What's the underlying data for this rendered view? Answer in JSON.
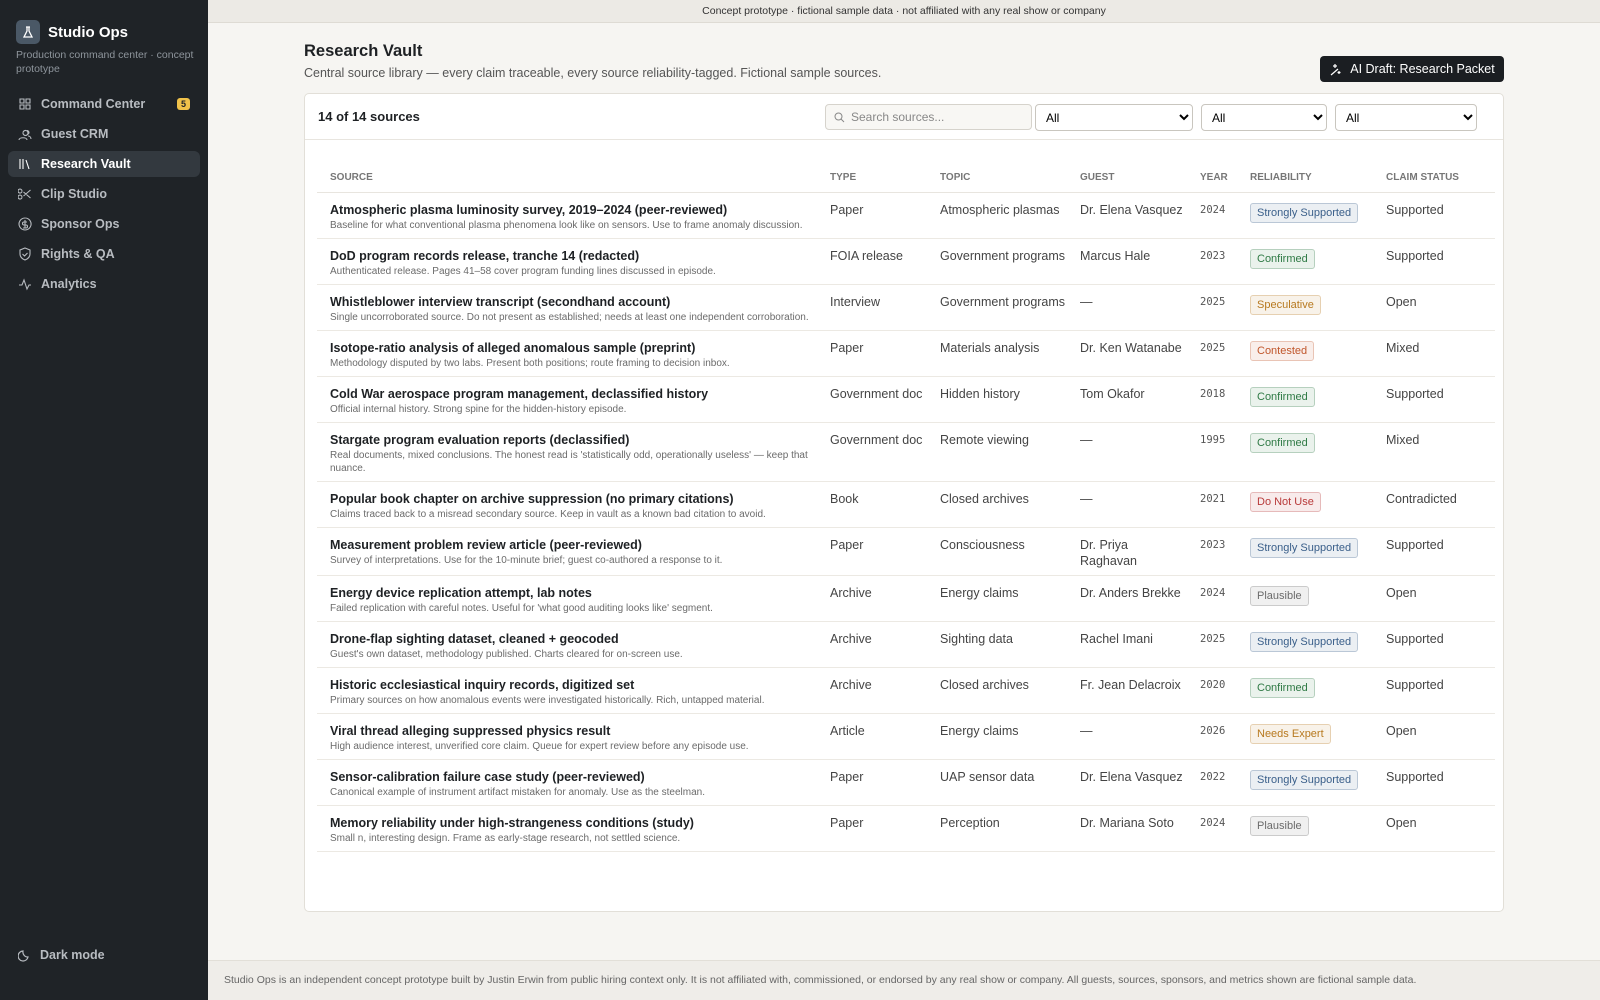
{
  "banner": "Concept prototype · fictional sample data · not affiliated with any real show or company",
  "sidebar": {
    "brand": "Studio Ops",
    "tagline": "Production command center · concept prototype",
    "nav": [
      {
        "label": "Command Center",
        "badge": 5
      },
      {
        "label": "Guest CRM"
      },
      {
        "label": "Research Vault",
        "active": true
      },
      {
        "label": "Clip Studio"
      },
      {
        "label": "Sponsor Ops"
      },
      {
        "label": "Rights & QA"
      },
      {
        "label": "Analytics"
      }
    ],
    "dark_mode": "Dark mode"
  },
  "header": {
    "title": "Research Vault",
    "subtitle": "Central source library — every claim traceable, every source reliability-tagged. Fictional sample sources.",
    "action": "AI Draft: Research Packet"
  },
  "toolbar": {
    "count": "14 of 14 sources",
    "search_placeholder": "Search sources...",
    "filters": [
      "All",
      "All",
      "All"
    ]
  },
  "table": {
    "columns": [
      "SOURCE",
      "TYPE",
      "TOPIC",
      "GUEST",
      "YEAR",
      "RELIABILITY",
      "CLAIM STATUS"
    ],
    "rows": [
      {
        "title": "Atmospheric plasma luminosity survey, 2019–2024 (peer-reviewed)",
        "note": "Baseline for what conventional plasma phenomena look like on sensors. Use to frame anomaly discussion.",
        "type": "Paper",
        "topic": "Atmospheric plasmas",
        "guest": "Dr. Elena Vasquez",
        "year": 2024,
        "reliability": "Strongly Supported",
        "color": "#3a5f8a",
        "status": "Supported"
      },
      {
        "title": "DoD program records release, tranche 14 (redacted)",
        "note": "Authenticated release. Pages 41–58 cover program funding lines discussed in episode.",
        "type": "FOIA release",
        "topic": "Government programs",
        "guest": "Marcus Hale",
        "year": 2023,
        "reliability": "Confirmed",
        "color": "#2f7a45",
        "status": "Supported"
      },
      {
        "title": "Whistleblower interview transcript (secondhand account)",
        "note": "Single uncorroborated source. Do not present as established; needs at least one independent corroboration.",
        "type": "Interview",
        "topic": "Government programs",
        "guest": "—",
        "year": 2025,
        "reliability": "Speculative",
        "color": "#b7791f",
        "status": "Open"
      },
      {
        "title": "Isotope-ratio analysis of alleged anomalous sample (preprint)",
        "note": "Methodology disputed by two labs. Present both positions; route framing to decision inbox.",
        "type": "Paper",
        "topic": "Materials analysis",
        "guest": "Dr. Ken Watanabe",
        "year": 2025,
        "reliability": "Contested",
        "color": "#c0562b",
        "status": "Mixed"
      },
      {
        "title": "Cold War aerospace program management, declassified history",
        "note": "Official internal history. Strong spine for the hidden-history episode.",
        "type": "Government doc",
        "topic": "Hidden history",
        "guest": "Tom Okafor",
        "year": 2018,
        "reliability": "Confirmed",
        "color": "#2f7a45",
        "status": "Supported"
      },
      {
        "title": "Stargate program evaluation reports (declassified)",
        "note": "Real documents, mixed conclusions. The honest read is 'statistically odd, operationally useless' — keep that nuance.",
        "type": "Government doc",
        "topic": "Remote viewing",
        "guest": "—",
        "year": 1995,
        "reliability": "Confirmed",
        "color": "#2f7a45",
        "status": "Mixed"
      },
      {
        "title": "Popular book chapter on archive suppression (no primary citations)",
        "note": "Claims traced back to a misread secondary source. Keep in vault as a known bad citation to avoid.",
        "type": "Book",
        "topic": "Closed archives",
        "guest": "—",
        "year": 2021,
        "reliability": "Do Not Use",
        "color": "#b83a3a",
        "status": "Contradicted"
      },
      {
        "title": "Measurement problem review article (peer-reviewed)",
        "note": "Survey of interpretations. Use for the 10-minute brief; guest co-authored a response to it.",
        "type": "Paper",
        "topic": "Consciousness",
        "guest": "Dr. Priya Raghavan",
        "year": 2023,
        "reliability": "Strongly Supported",
        "color": "#3a5f8a",
        "status": "Supported"
      },
      {
        "title": "Energy device replication attempt, lab notes",
        "note": "Failed replication with careful notes. Useful for 'what good auditing looks like' segment.",
        "type": "Archive",
        "topic": "Energy claims",
        "guest": "Dr. Anders Brekke",
        "year": 2024,
        "reliability": "Plausible",
        "color": "#6b6b6b",
        "status": "Open"
      },
      {
        "title": "Drone-flap sighting dataset, cleaned + geocoded",
        "note": "Guest's own dataset, methodology published. Charts cleared for on-screen use.",
        "type": "Archive",
        "topic": "Sighting data",
        "guest": "Rachel Imani",
        "year": 2025,
        "reliability": "Strongly Supported",
        "color": "#3a5f8a",
        "status": "Supported"
      },
      {
        "title": "Historic ecclesiastical inquiry records, digitized set",
        "note": "Primary sources on how anomalous events were investigated historically. Rich, untapped material.",
        "type": "Archive",
        "topic": "Closed archives",
        "guest": "Fr. Jean Delacroix",
        "year": 2020,
        "reliability": "Confirmed",
        "color": "#2f7a45",
        "status": "Supported"
      },
      {
        "title": "Viral thread alleging suppressed physics result",
        "note": "High audience interest, unverified core claim. Queue for expert review before any episode use.",
        "type": "Article",
        "topic": "Energy claims",
        "guest": "—",
        "year": 2026,
        "reliability": "Needs Expert",
        "color": "#b7791f",
        "status": "Open"
      },
      {
        "title": "Sensor-calibration failure case study (peer-reviewed)",
        "note": "Canonical example of instrument artifact mistaken for anomaly. Use as the steelman.",
        "type": "Paper",
        "topic": "UAP sensor data",
        "guest": "Dr. Elena Vasquez",
        "year": 2022,
        "reliability": "Strongly Supported",
        "color": "#3a5f8a",
        "status": "Supported"
      },
      {
        "title": "Memory reliability under high-strangeness conditions (study)",
        "note": "Small n, interesting design. Frame as early-stage research, not settled science.",
        "type": "Paper",
        "topic": "Perception",
        "guest": "Dr. Mariana Soto",
        "year": 2024,
        "reliability": "Plausible",
        "color": "#6b6b6b",
        "status": "Open"
      }
    ]
  },
  "footer": "Studio Ops is an independent concept prototype built by Justin Erwin from public hiring context only. It is not affiliated with, commissioned, or endorsed by any real show or company. All guests, sources, sponsors, and metrics shown are fictional sample data."
}
